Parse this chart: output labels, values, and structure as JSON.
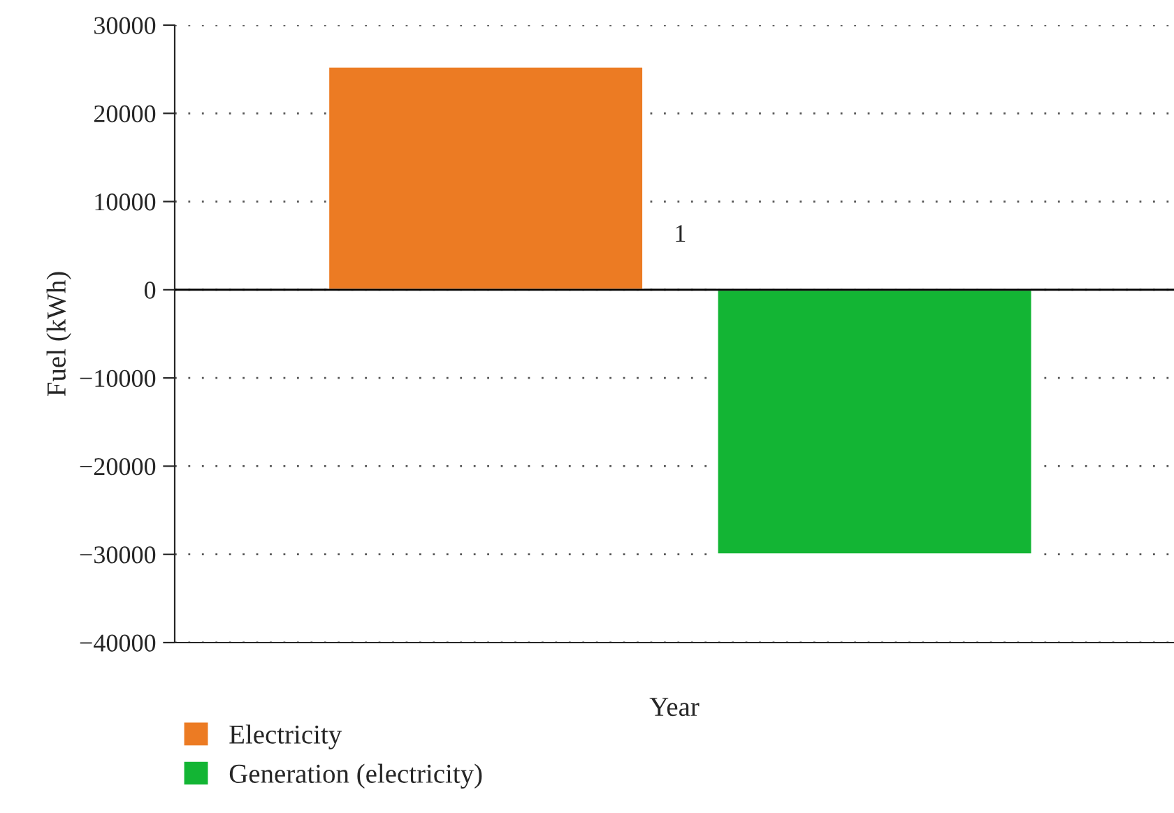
{
  "chart_data": {
    "type": "bar",
    "categories": [
      "1"
    ],
    "series": [
      {
        "name": "Electricity",
        "color": "#ec7b23",
        "values": [
          25300
        ]
      },
      {
        "name": "Generation (electricity)",
        "color": "#13b534",
        "values": [
          -30000
        ]
      }
    ],
    "xlabel": "Year",
    "ylabel": "Fuel (kWh)",
    "ylim": [
      -40000,
      30000
    ],
    "yticks": [
      {
        "value": -40000,
        "label": "−40000"
      },
      {
        "value": -30000,
        "label": "−30000"
      },
      {
        "value": -20000,
        "label": "−20000"
      },
      {
        "value": -10000,
        "label": "−10000"
      },
      0,
      10000,
      20000,
      30000
    ],
    "grid": "y",
    "legend": "bottom"
  }
}
